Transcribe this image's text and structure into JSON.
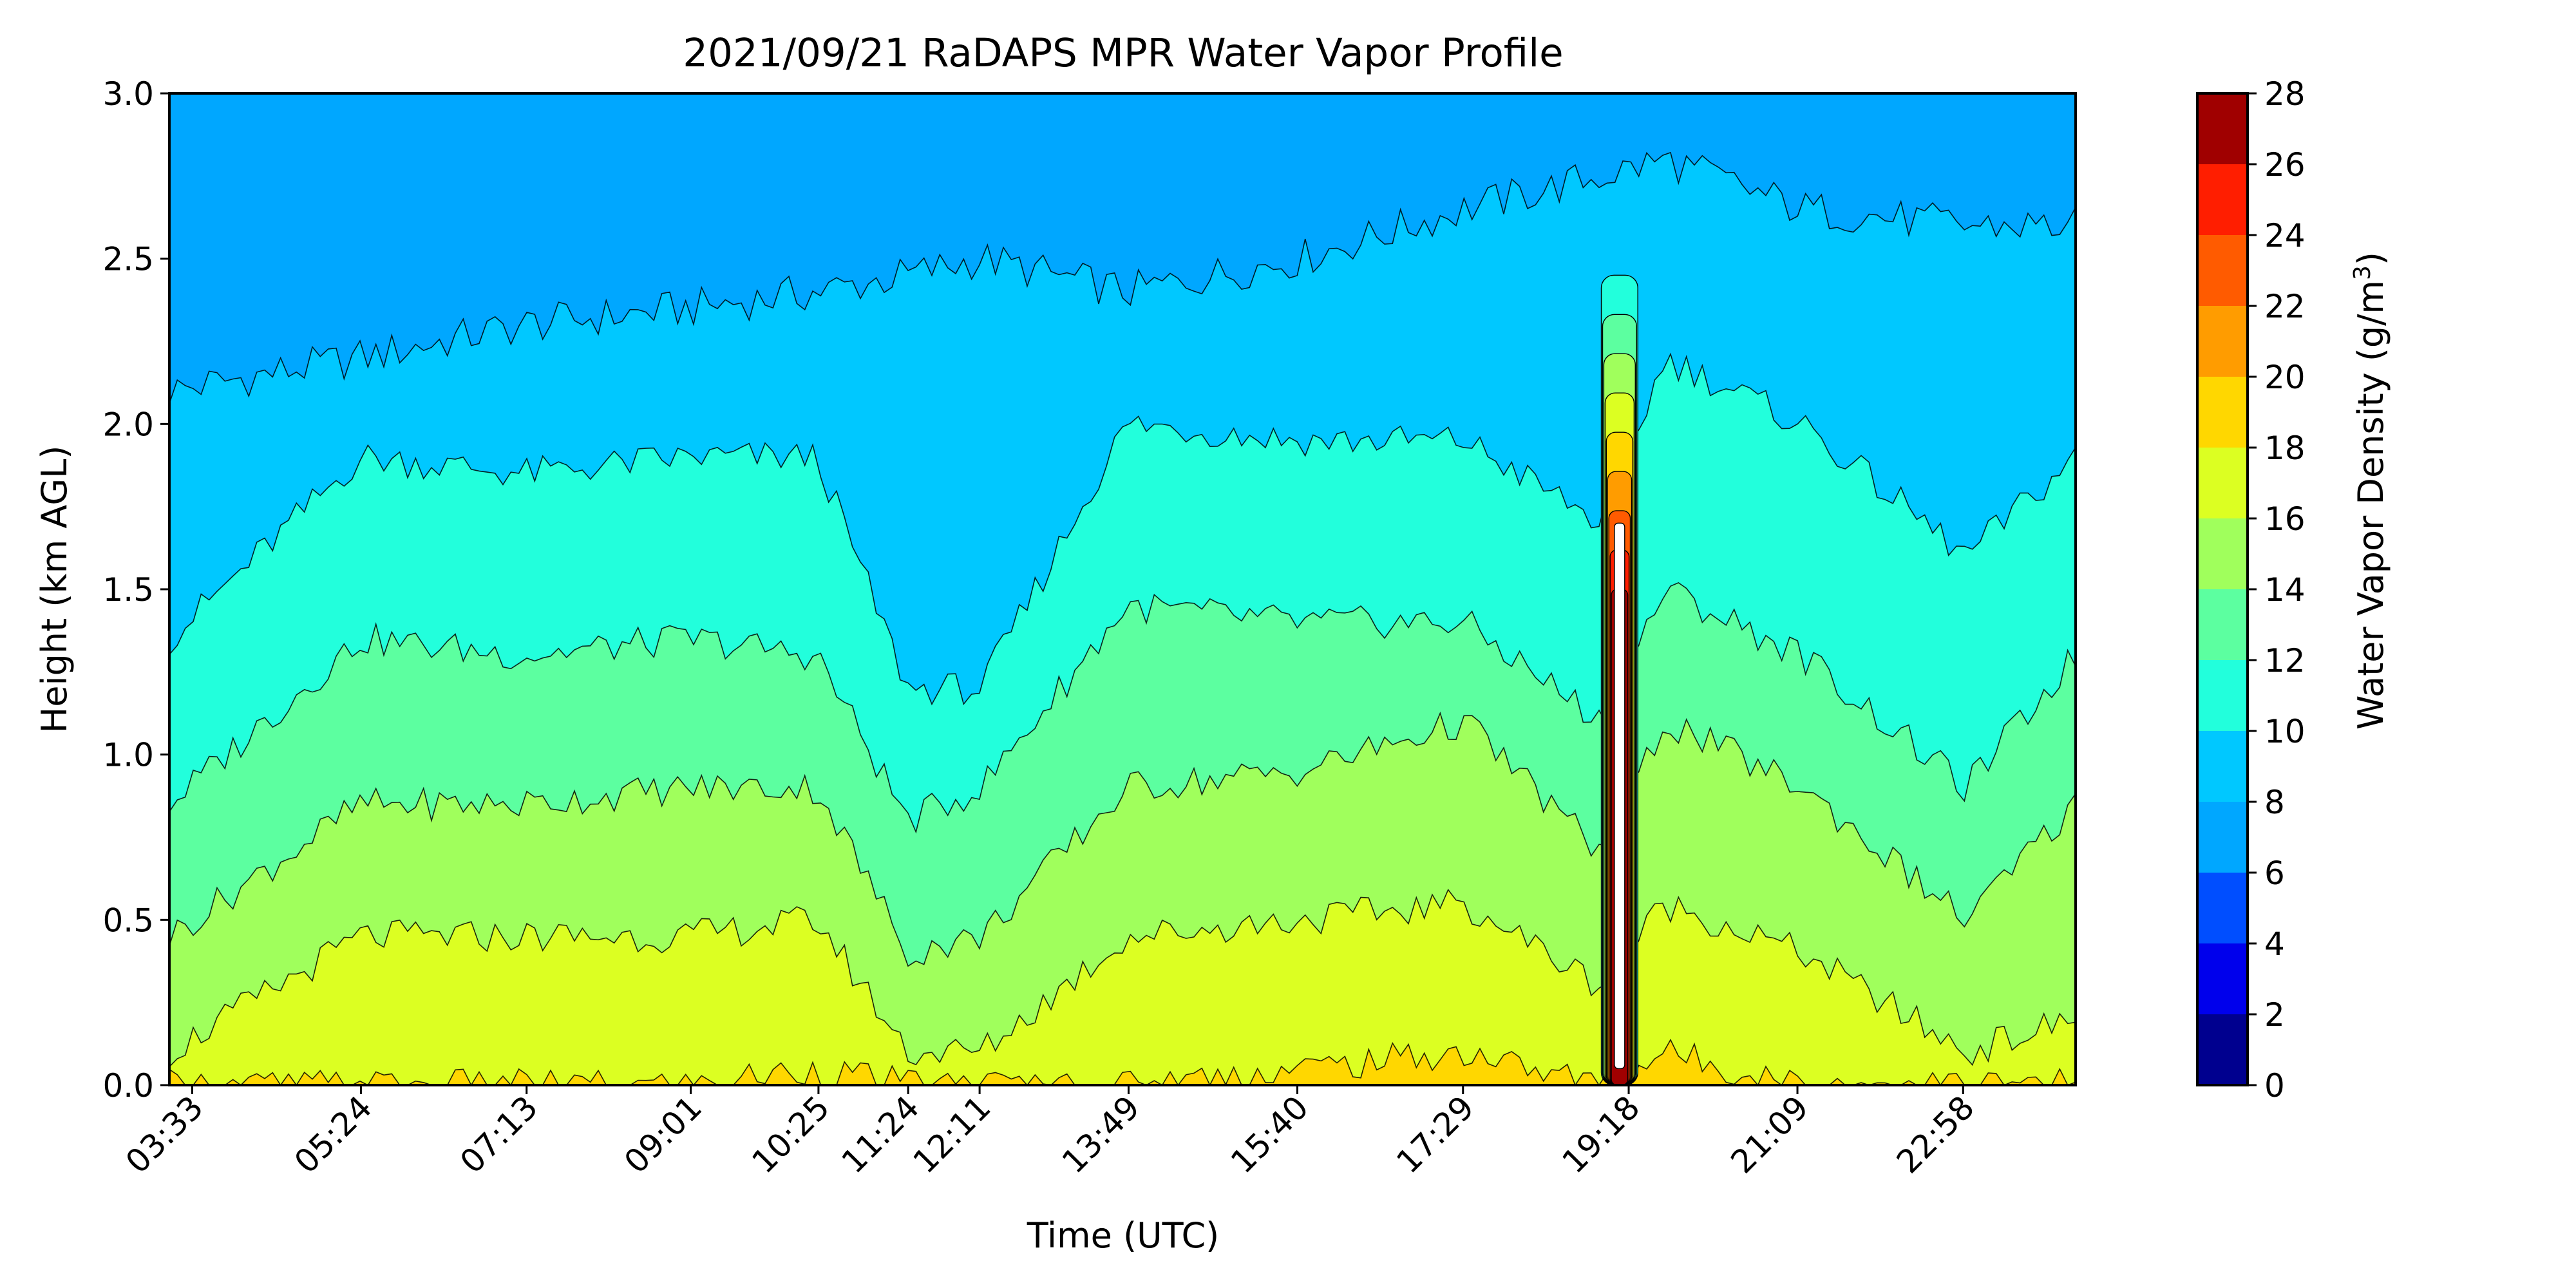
{
  "chart_data": {
    "type": "heatmap",
    "subtype": "filled-contour",
    "title": "2021/09/21 RaDAPS MPR Water Vapor Profile",
    "xlabel": "Time (UTC)",
    "ylabel": "Height (km AGL)",
    "x_ticks": [
      {
        "label": "03:33",
        "hour": 3.55
      },
      {
        "label": "05:24",
        "hour": 5.4
      },
      {
        "label": "07:13",
        "hour": 7.2167
      },
      {
        "label": "09:01",
        "hour": 9.0167
      },
      {
        "label": "10:25",
        "hour": 10.4167
      },
      {
        "label": "11:24",
        "hour": 11.4
      },
      {
        "label": "12:11",
        "hour": 12.1833
      },
      {
        "label": "13:49",
        "hour": 13.8167
      },
      {
        "label": "15:40",
        "hour": 15.6667
      },
      {
        "label": "17:29",
        "hour": 17.4833
      },
      {
        "label": "19:18",
        "hour": 19.3
      },
      {
        "label": "21:09",
        "hour": 21.15
      },
      {
        "label": "22:58",
        "hour": 22.9667
      }
    ],
    "y_ticks": [
      "0.0",
      "0.5",
      "1.0",
      "1.5",
      "2.0",
      "2.5",
      "3.0"
    ],
    "ylim": [
      0,
      3.0
    ],
    "colorbar": {
      "label": "Water Vapor Density (g/m³)",
      "label_main": "Water Vapor Density (g/m",
      "label_sup": "3",
      "label_end": ")",
      "levels": [
        0,
        2,
        4,
        6,
        8,
        10,
        12,
        14,
        16,
        18,
        20,
        22,
        24,
        26,
        28
      ],
      "tick_labels": [
        "0",
        "2",
        "4",
        "6",
        "8",
        "10",
        "12",
        "14",
        "16",
        "18",
        "20",
        "22",
        "24",
        "26",
        "28"
      ],
      "colors": [
        "#00008f",
        "#0000ec",
        "#004eff",
        "#00a7ff",
        "#00c8ff",
        "#22ffdc",
        "#5cffa0",
        "#a0ff5c",
        "#dcff22",
        "#ffd700",
        "#ff9c00",
        "#ff5b00",
        "#ff1e00",
        "#a00000"
      ]
    },
    "level_boundaries_km": {
      "8": {
        "hour": [
          3.3,
          5.4,
          7.2,
          9.0,
          10.4,
          11.4,
          12.2,
          13.8,
          15.7,
          17.5,
          19.0,
          19.7,
          21.2,
          23.0,
          24.2
        ],
        "height": [
          2.1,
          2.2,
          2.3,
          2.35,
          2.4,
          2.45,
          2.5,
          2.4,
          2.5,
          2.65,
          2.75,
          2.8,
          2.65,
          2.6,
          2.6
        ]
      },
      "10": {
        "hour": [
          3.3,
          5.4,
          7.2,
          9.0,
          10.4,
          11.4,
          12.2,
          13.8,
          15.7,
          17.5,
          19.0,
          19.7,
          21.2,
          23.0,
          24.2
        ],
        "height": [
          1.35,
          1.9,
          1.85,
          1.9,
          1.9,
          1.2,
          1.2,
          2.0,
          1.95,
          1.95,
          1.7,
          2.2,
          2.0,
          1.6,
          1.9
        ]
      },
      "12": {
        "hour": [
          3.3,
          5.4,
          7.2,
          9.0,
          10.4,
          11.4,
          12.2,
          13.8,
          15.7,
          17.5,
          19.0,
          19.7,
          21.2,
          23.0,
          24.2
        ],
        "height": [
          0.85,
          1.35,
          1.3,
          1.35,
          1.3,
          0.8,
          0.9,
          1.45,
          1.4,
          1.4,
          1.1,
          1.5,
          1.3,
          0.9,
          1.3
        ]
      },
      "14": {
        "hour": [
          3.3,
          5.4,
          7.2,
          9.0,
          10.4,
          11.4,
          12.2,
          13.8,
          15.7,
          17.5,
          19.0,
          19.7,
          21.2,
          23.0,
          24.2
        ],
        "height": [
          0.45,
          0.85,
          0.85,
          0.9,
          0.9,
          0.4,
          0.45,
          0.9,
          0.95,
          1.1,
          0.7,
          1.1,
          0.9,
          0.5,
          0.85
        ]
      },
      "16": {
        "hour": [
          3.3,
          5.4,
          7.2,
          9.0,
          10.4,
          11.4,
          12.2,
          13.8,
          15.7,
          17.5,
          19.0,
          19.7,
          21.2,
          23.0,
          24.2
        ],
        "height": [
          0.1,
          0.45,
          0.45,
          0.45,
          0.5,
          0.1,
          0.1,
          0.45,
          0.5,
          0.55,
          0.3,
          0.55,
          0.4,
          0.1,
          0.2
        ]
      }
    },
    "features": [
      {
        "kind": "moist-column",
        "hour_range": [
          19.0,
          19.4
        ],
        "max_value": 28,
        "height_top_km": 2.45
      }
    ]
  }
}
